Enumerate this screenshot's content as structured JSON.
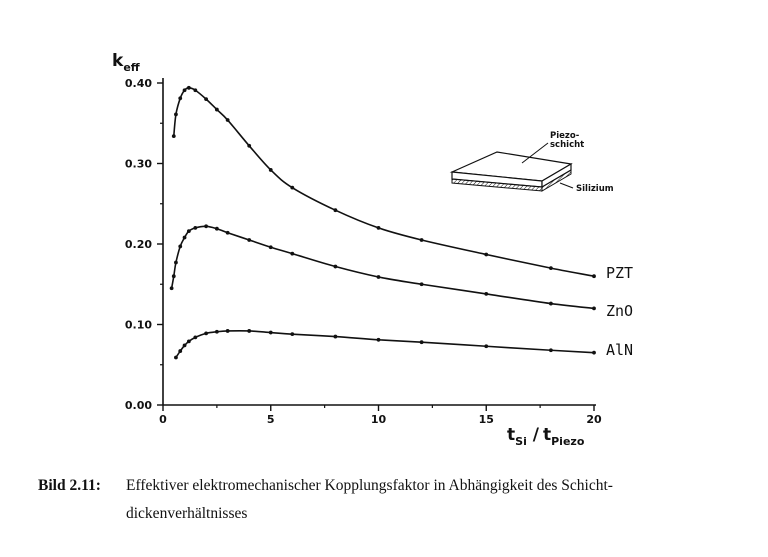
{
  "chart_data": {
    "type": "line",
    "ylabel": {
      "main": "k",
      "sub": "eff"
    },
    "xlabel": {
      "main1": "t",
      "sub1": "Si",
      "sep": " /",
      "main2": "t",
      "sub2": "Piezo"
    },
    "xlim": [
      0,
      20
    ],
    "ylim": [
      0,
      0.4
    ],
    "x_ticks": [
      "0",
      "5",
      "10",
      "15",
      "20"
    ],
    "y_ticks": [
      "0.00",
      "0.10",
      "0.20",
      "0.30",
      "0.40"
    ],
    "grid": false,
    "series": [
      {
        "name": "PZT",
        "x": [
          0.5,
          0.6,
          0.8,
          1.0,
          1.2,
          1.5,
          2.0,
          2.5,
          3.0,
          4.0,
          5.0,
          6.0,
          8.0,
          10.0,
          12.0,
          15.0,
          18.0,
          20.0
        ],
        "y": [
          0.334,
          0.361,
          0.381,
          0.391,
          0.394,
          0.391,
          0.38,
          0.367,
          0.354,
          0.322,
          0.292,
          0.27,
          0.242,
          0.22,
          0.205,
          0.187,
          0.17,
          0.16
        ]
      },
      {
        "name": "ZnO",
        "x": [
          0.4,
          0.5,
          0.6,
          0.8,
          1.0,
          1.2,
          1.5,
          2.0,
          2.5,
          3.0,
          4.0,
          5.0,
          6.0,
          8.0,
          10.0,
          12.0,
          15.0,
          18.0,
          20.0
        ],
        "y": [
          0.145,
          0.16,
          0.177,
          0.197,
          0.208,
          0.216,
          0.22,
          0.222,
          0.219,
          0.214,
          0.205,
          0.196,
          0.188,
          0.172,
          0.159,
          0.15,
          0.138,
          0.126,
          0.12
        ]
      },
      {
        "name": "AlN",
        "x": [
          0.6,
          0.8,
          1.0,
          1.2,
          1.5,
          2.0,
          2.5,
          3.0,
          4.0,
          5.0,
          6.0,
          8.0,
          10.0,
          12.0,
          15.0,
          18.0,
          20.0
        ],
        "y": [
          0.059,
          0.067,
          0.074,
          0.079,
          0.084,
          0.089,
          0.091,
          0.092,
          0.092,
          0.09,
          0.088,
          0.085,
          0.081,
          0.078,
          0.073,
          0.068,
          0.065
        ]
      }
    ],
    "inset": {
      "top_label_line1": "Piezo-",
      "top_label_line2": "schicht",
      "bottom_label": "Silizium"
    }
  },
  "caption": {
    "number": "Bild 2.11:",
    "text_line1": "Effektiver elektromechanischer Kopplungsfaktor in Abhängigkeit des Schicht-",
    "text_line2": "dickenverhältnisses"
  }
}
